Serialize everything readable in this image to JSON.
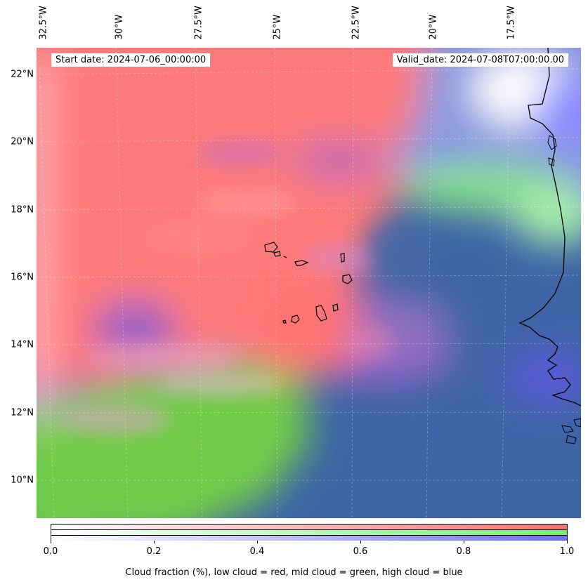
{
  "header": {
    "start_date": "Start date: 2024-07-06_00:00:00",
    "valid_date": "Valid_date: 2024-07-08T07:00:00.00"
  },
  "map": {
    "region": "Eastern tropical North Atlantic, Cape Verde and West African coast",
    "lon_range_deg": [
      -33.0,
      -15.8
    ],
    "lat_range_deg": [
      8.8,
      22.8
    ],
    "lon_labels": [
      "32.5°W",
      "30°W",
      "27.5°W",
      "25°W",
      "22.5°W",
      "20°W",
      "17.5°W"
    ],
    "lat_labels": [
      "22°N",
      "20°N",
      "18°N",
      "16°N",
      "14°N",
      "12°N",
      "10°N"
    ],
    "gridlines": true,
    "layer_colors": {
      "low_cloud": "#ff6f6f",
      "mid_cloud": "#6ff26f",
      "high_cloud": "#6f6fff",
      "low_high_mix": "#9a64cc",
      "mid_high_mix": "#3f64a6",
      "clear": "#ffffff",
      "coastline": "#000000"
    }
  },
  "colorbar": {
    "ticks": [
      "0.0",
      "0.2",
      "0.4",
      "0.6",
      "0.8",
      "1.0"
    ],
    "label": "Cloud fraction (%), low cloud = red, mid cloud = green, high cloud = blue"
  }
}
